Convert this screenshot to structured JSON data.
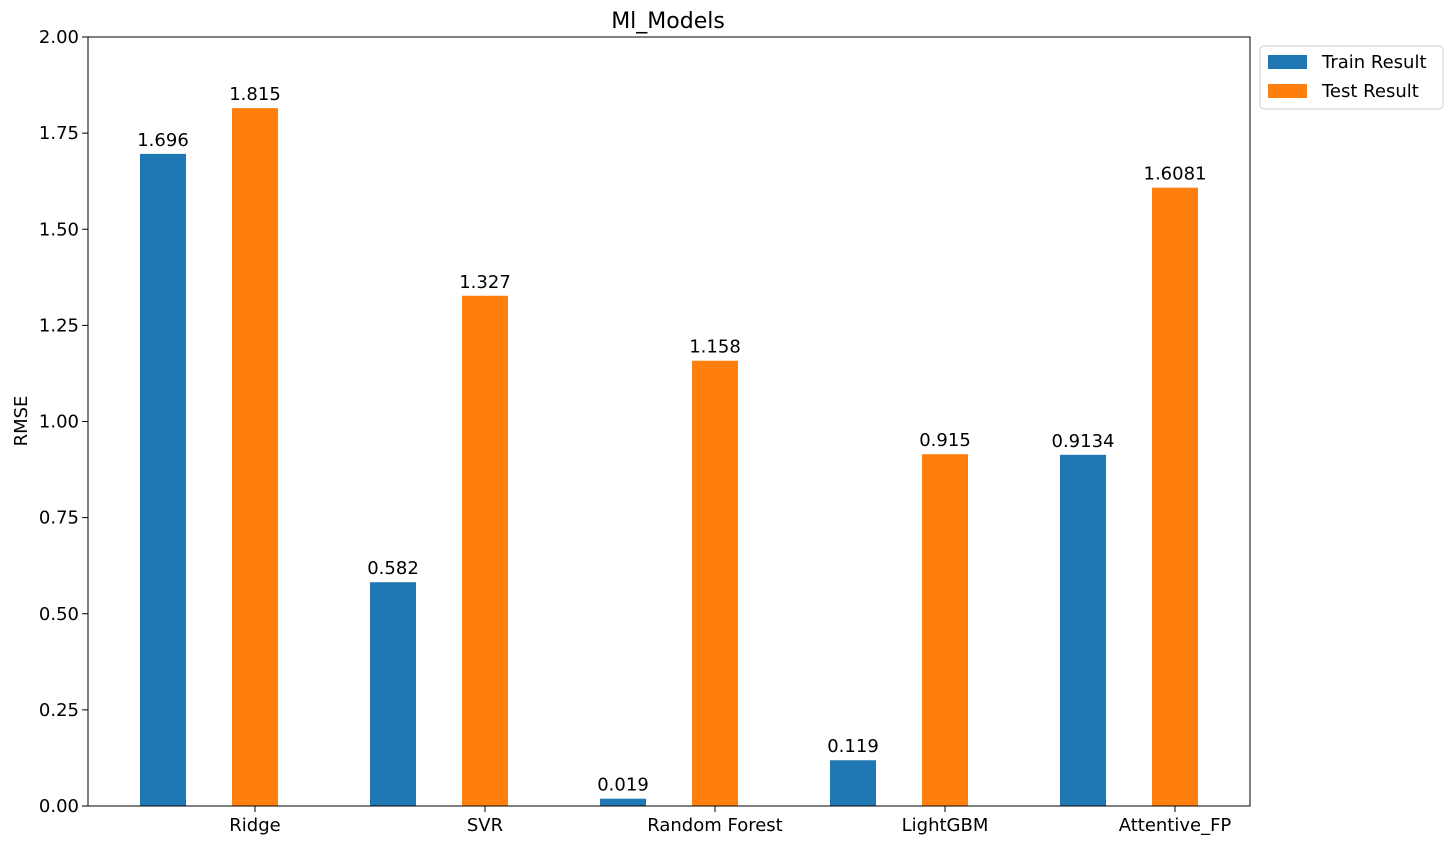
{
  "chart_data": {
    "type": "bar",
    "title": "Ml_Models",
    "xlabel": "",
    "ylabel": "RMSE",
    "ylim": [
      0,
      2.0
    ],
    "yticks": [
      "0.00",
      "0.25",
      "0.50",
      "0.75",
      "1.00",
      "1.25",
      "1.50",
      "1.75",
      "2.00"
    ],
    "categories": [
      "Ridge",
      "SVR",
      "Random Forest",
      "LightGBM",
      "Attentive_FP"
    ],
    "series": [
      {
        "name": "Train Result",
        "color": "#1f77b4",
        "values": [
          1.696,
          0.582,
          0.019,
          0.119,
          0.9134
        ],
        "labels": [
          "1.696",
          "0.582",
          "0.019",
          "0.119",
          "0.9134"
        ]
      },
      {
        "name": "Test Result",
        "color": "#ff7f0e",
        "values": [
          1.815,
          1.327,
          1.158,
          0.915,
          1.6081
        ],
        "labels": [
          "1.815",
          "1.327",
          "1.158",
          "0.915",
          "1.6081"
        ]
      }
    ],
    "grid": false,
    "legend_position": "outside top-right"
  }
}
